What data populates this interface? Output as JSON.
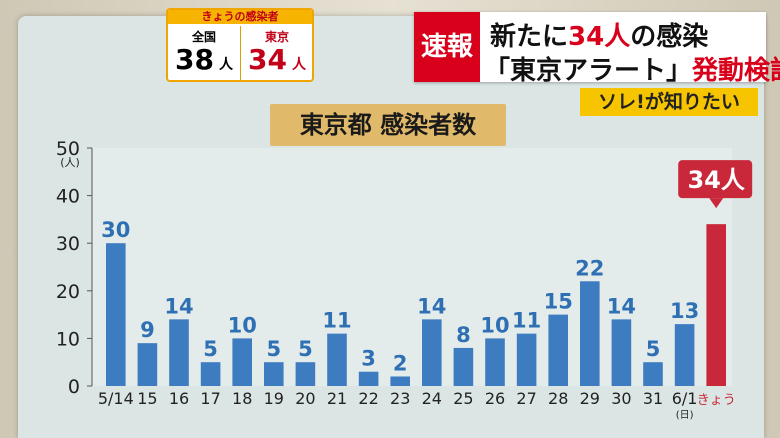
{
  "counter": {
    "header": "きょうの感染者",
    "national_label": "全国",
    "national_value": "38",
    "tokyo_label": "東京",
    "tokyo_value": "34",
    "unit": "人"
  },
  "headline": {
    "tag": "速報",
    "line1_prefix": "新たに",
    "line1_highlight": "34人",
    "line1_suffix": "の感染",
    "line2_main": "「東京アラート」",
    "line2_highlight": "発動検討"
  },
  "banner": "ソレ!が知りたい",
  "colors": {
    "bar": "#3d7cc0",
    "highlight_bar": "#c8283a",
    "board": "#dbe6e4"
  },
  "chart_data": {
    "type": "bar",
    "title": "東京都 感染者数",
    "ylabel": "(人)",
    "ylim": [
      0,
      50
    ],
    "yticks": [
      0,
      10,
      20,
      30,
      40,
      50
    ],
    "categories": [
      "5/14",
      "15",
      "16",
      "17",
      "18",
      "19",
      "20",
      "21",
      "22",
      "23",
      "24",
      "25",
      "26",
      "27",
      "28",
      "29",
      "30",
      "31",
      "6/1",
      "きょう"
    ],
    "sublabels": {
      "6/1": "(日)"
    },
    "values": [
      30,
      9,
      14,
      5,
      10,
      5,
      5,
      11,
      3,
      2,
      14,
      8,
      10,
      11,
      15,
      22,
      14,
      5,
      13,
      34
    ],
    "highlight_index": 19,
    "highlight_callout": "34人"
  }
}
